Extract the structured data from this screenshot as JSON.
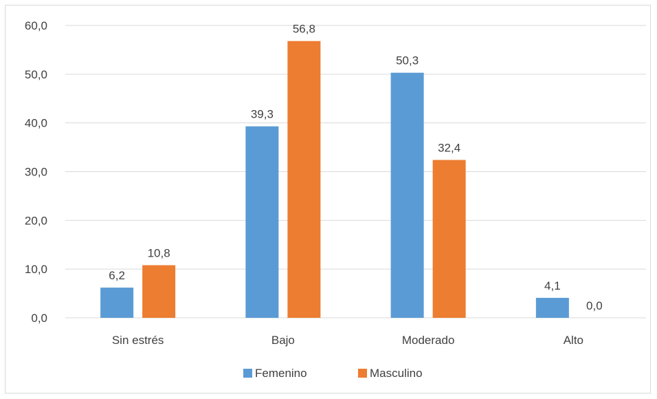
{
  "chart_data": {
    "type": "bar",
    "title": "",
    "xlabel": "",
    "ylabel": "",
    "categories": [
      "Sin estrés",
      "Bajo",
      "Moderado",
      "Alto"
    ],
    "series": [
      {
        "name": "Femenino",
        "values": [
          6.2,
          39.3,
          50.3,
          4.1
        ],
        "color": "#5b9bd5"
      },
      {
        "name": "Masculino",
        "values": [
          10.8,
          56.8,
          32.4,
          0.0
        ],
        "color": "#ed7d31"
      }
    ],
    "ylim": [
      0,
      60
    ],
    "yticks": [
      "0,0",
      "10,0",
      "20,0",
      "30,0",
      "40,0",
      "50,0",
      "60,0"
    ],
    "data_labels": [
      [
        "6,2",
        "39,3",
        "50,3",
        "4,1"
      ],
      [
        "10,8",
        "56,8",
        "32,4",
        "0,0"
      ]
    ],
    "grid": true,
    "legend_position": "bottom"
  },
  "colors": {
    "gridline": "#d9d9d9",
    "text": "#404040"
  }
}
